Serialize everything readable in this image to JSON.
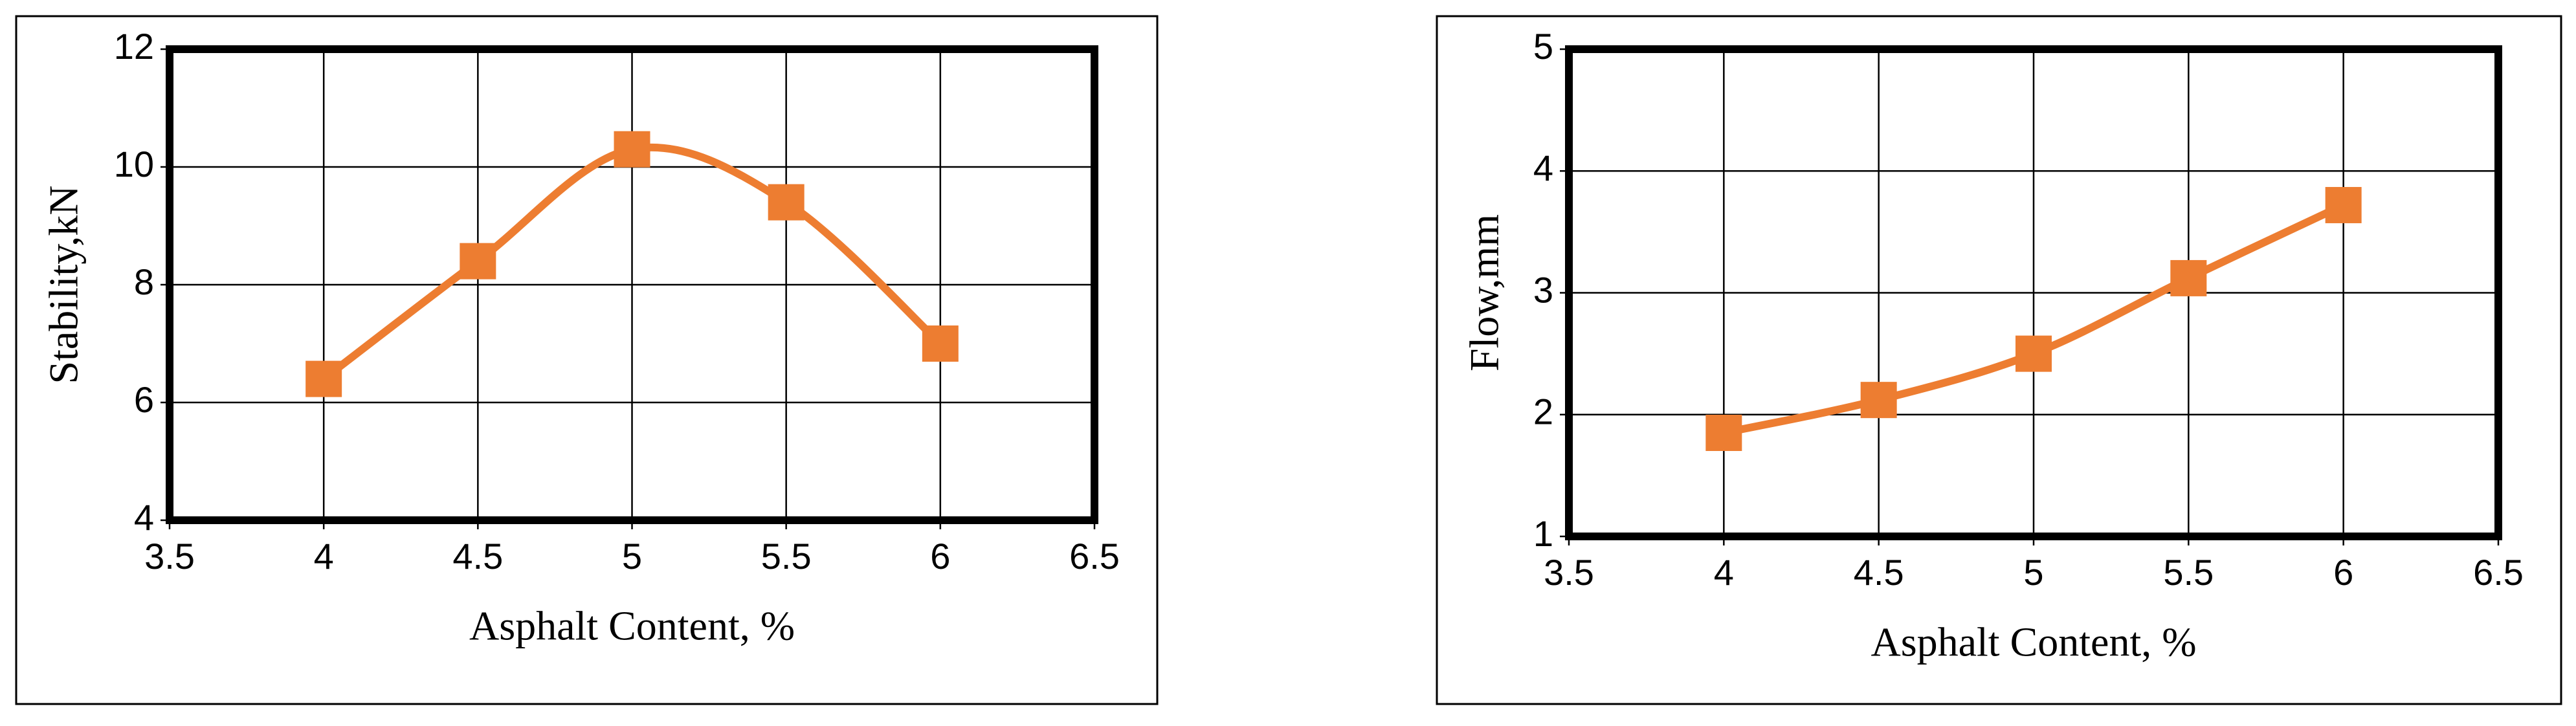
{
  "chart_data": [
    {
      "type": "line",
      "smooth": true,
      "x_label": "Asphalt Content, %",
      "y_label": "Stability,kN",
      "x": [
        4,
        4.5,
        5,
        5.5,
        6
      ],
      "values": [
        6.4,
        8.4,
        10.3,
        9.4,
        7.0
      ],
      "color": "#ed7d31",
      "xlim": [
        3.5,
        6.5
      ],
      "xticks": [
        3.5,
        4,
        4.5,
        5,
        5.5,
        6,
        6.5
      ],
      "ylim": [
        4,
        12
      ],
      "yticks": [
        4,
        6,
        8,
        10,
        12
      ],
      "grid": true
    },
    {
      "type": "line",
      "smooth": true,
      "x_label": "Asphalt Content, %",
      "y_label": "Flow,mm",
      "x": [
        4,
        4.5,
        5,
        5.5,
        6
      ],
      "values": [
        1.85,
        2.12,
        2.5,
        3.12,
        3.72
      ],
      "color": "#ed7d31",
      "xlim": [
        3.5,
        6.5
      ],
      "xticks": [
        3.5,
        4,
        4.5,
        5,
        5.5,
        6,
        6.5
      ],
      "ylim": [
        1,
        5
      ],
      "yticks": [
        1,
        2,
        3,
        4,
        5
      ],
      "grid": true
    }
  ]
}
